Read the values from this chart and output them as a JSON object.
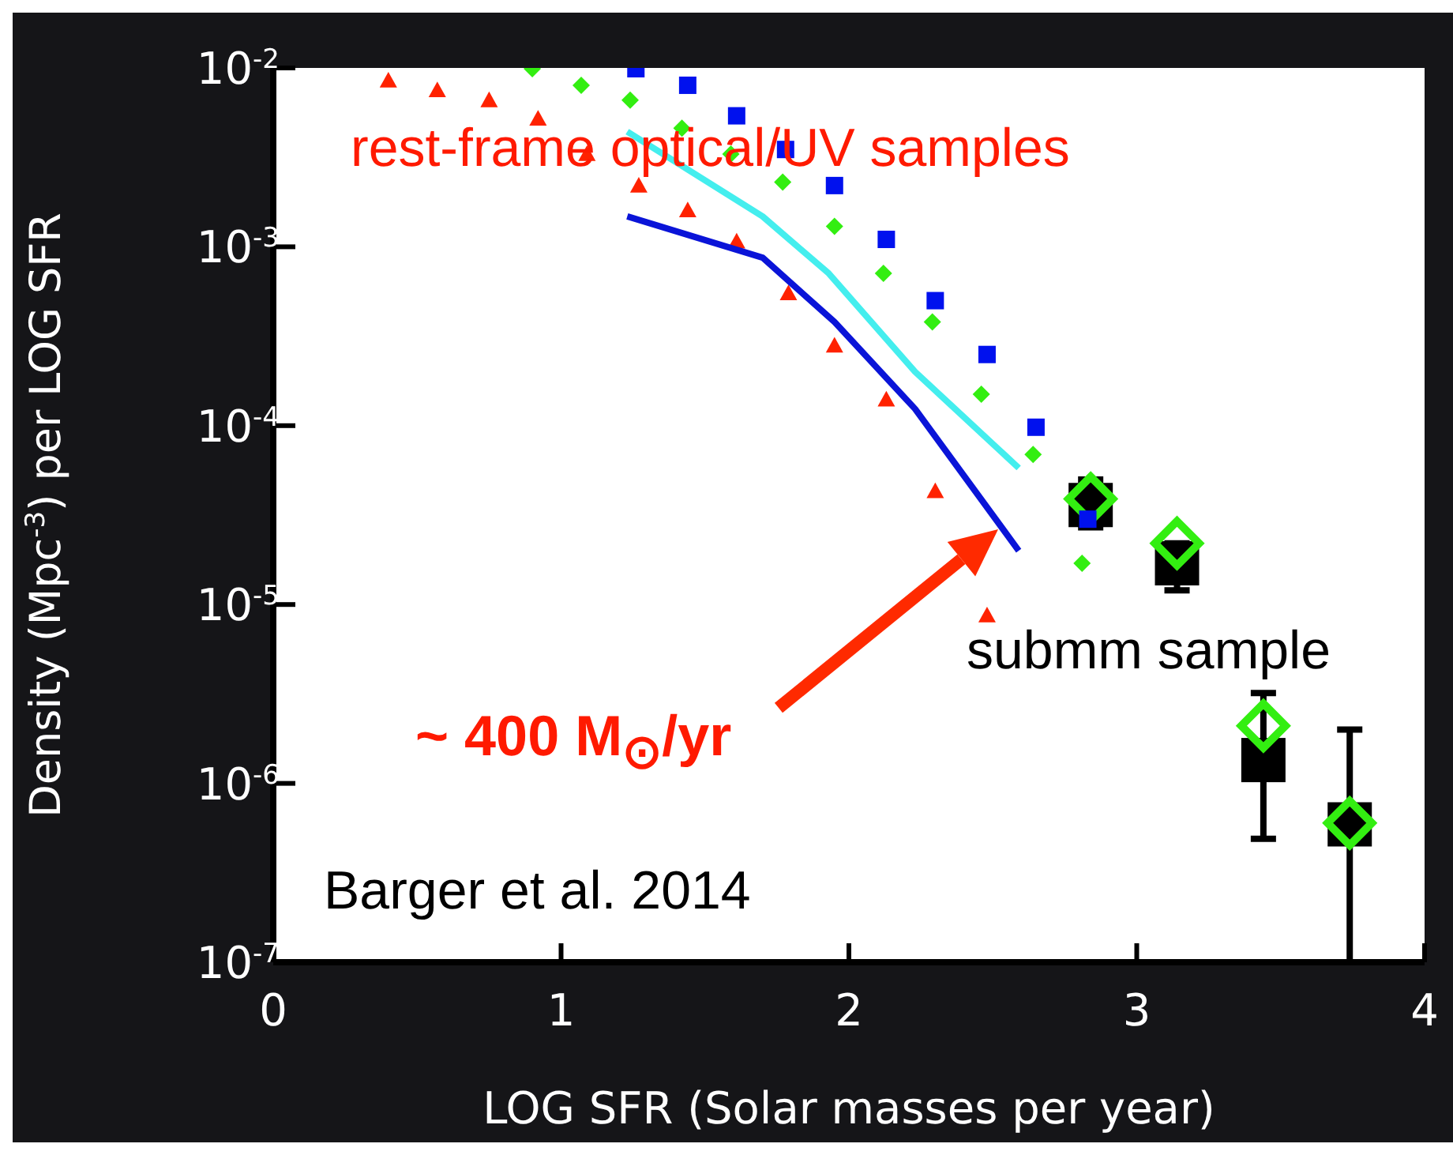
{
  "chart_data": {
    "type": "scatter",
    "xlabel": "LOG SFR (Solar masses per year)",
    "ylabel": "Density (Mpc$^{-3}$) per LOG SFR",
    "xlim": [
      0,
      4
    ],
    "xticks": [
      0,
      1,
      2,
      3,
      4
    ],
    "ylim": [
      1e-07,
      0.01
    ],
    "log": "y",
    "yticks": [
      {
        "value": 1e-07,
        "label": "10$^{-7}$"
      },
      {
        "value": 1e-06,
        "label": "10$^{-6}$"
      },
      {
        "value": 1e-05,
        "label": "10$^{-5}$"
      },
      {
        "value": 0.0001,
        "label": "10$^{-4}$"
      },
      {
        "value": 0.001,
        "label": "10$^{-3}$"
      },
      {
        "value": 0.01,
        "label": "10$^{-2}$"
      }
    ],
    "grid": false,
    "legend": false,
    "series": [
      {
        "marker": "square",
        "color": "#000000",
        "x": [
          2.84,
          3.14,
          3.44,
          3.74
        ],
        "values": [
          3.6e-05,
          1.7e-05,
          1.35e-06,
          5.9e-07
        ],
        "errors": [
          [
            2.7e-05,
            5e-05
          ],
          [
            1.2e-05,
            2.2e-05
          ],
          [
            4.9e-07,
            3.2e-06
          ],
          [
            1e-07,
            2e-06
          ]
        ]
      },
      {
        "marker": "diamond",
        "color": "#33ee11",
        "x": [
          2.84,
          3.14,
          3.44,
          3.74
        ],
        "values": [
          3.9e-05,
          2.2e-05,
          2.1e-06,
          6e-07
        ]
      },
      {
        "marker": "triangle",
        "color": "#ff2200",
        "x": [
          0.4,
          0.57,
          0.75,
          0.92,
          1.09,
          1.27,
          1.44,
          1.61,
          1.79,
          1.95,
          2.13,
          2.3,
          2.48
        ],
        "values": [
          0.0085,
          0.0075,
          0.0066,
          0.0052,
          0.0033,
          0.0022,
          0.0016,
          0.00107,
          0.00055,
          0.00028,
          0.00014,
          4.3e-05,
          8.7e-06
        ]
      },
      {
        "marker": "diamond",
        "color": "#33ee11",
        "x": [
          0.9,
          1.07,
          1.24,
          1.42,
          1.59,
          1.77,
          1.95,
          2.12,
          2.29,
          2.46,
          2.64,
          2.81
        ],
        "values": [
          0.0099,
          0.008,
          0.0066,
          0.0046,
          0.0033,
          0.0023,
          0.0013,
          0.00071,
          0.00038,
          0.00015,
          6.9e-05,
          1.7e-05
        ]
      },
      {
        "marker": "square",
        "color": "#0011ee",
        "x": [
          1.26,
          1.44,
          1.61,
          1.78,
          1.95,
          2.13,
          2.3,
          2.48,
          2.65,
          2.83
        ],
        "values": [
          0.0099,
          0.008,
          0.0054,
          0.0035,
          0.0022,
          0.0011,
          0.0005,
          0.00025,
          9.8e-05,
          3e-05
        ]
      },
      {
        "type": "line",
        "marker": "none",
        "color": "#44eeee",
        "x": [
          1.23,
          1.7,
          1.93,
          2.23,
          2.59
        ],
        "values": [
          0.0044,
          0.00148,
          0.00071,
          0.0002,
          5.8e-05
        ]
      },
      {
        "type": "line",
        "marker": "none",
        "color": "#0a14d8",
        "x": [
          1.23,
          1.7,
          1.95,
          2.23,
          2.59
        ],
        "values": [
          0.00148,
          0.00087,
          0.00038,
          0.000124,
          2e-05
        ]
      }
    ],
    "annotations": [
      "rest-frame optical/UV samples",
      "~ 400 M$_{⊙}$/yr",
      "submm sample",
      "Barger et al. 2014"
    ]
  }
}
